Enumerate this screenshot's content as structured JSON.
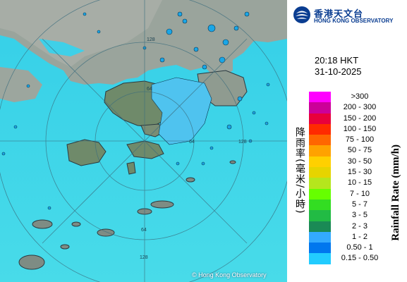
{
  "logo": {
    "zh": "香港天文台",
    "en": "HONG KONG OBSERVATORY",
    "icon": "hko-logo-icon"
  },
  "time": "20:18 HKT",
  "date": "31-10-2025",
  "legend": {
    "title_zh": "降雨率(毫米/小時)",
    "title_en": "Rainfall Rate (mm/h)",
    "items": [
      {
        "label": ">300",
        "color": "#ff00ff"
      },
      {
        "label": "200 - 300",
        "color": "#cc0099"
      },
      {
        "label": "150 - 200",
        "color": "#e8003c"
      },
      {
        "label": "100 - 150",
        "color": "#ff2a00"
      },
      {
        "label": "75 - 100",
        "color": "#ff6600"
      },
      {
        "label": "50 - 75",
        "color": "#ffa200"
      },
      {
        "label": "30 - 50",
        "color": "#ffd000"
      },
      {
        "label": "15 - 30",
        "color": "#e6d400"
      },
      {
        "label": "10 - 15",
        "color": "#b5e61d"
      },
      {
        "label": "7 - 10",
        "color": "#66ff00"
      },
      {
        "label": "5 - 7",
        "color": "#33dd22"
      },
      {
        "label": "3 - 5",
        "color": "#22bb44"
      },
      {
        "label": "2 - 3",
        "color": "#1a8a55"
      },
      {
        "label": "1 - 2",
        "color": "#33aaff"
      },
      {
        "label": "0.50 - 1",
        "color": "#0077ee"
      },
      {
        "label": "0.15 - 0.50",
        "color": "#22ccff"
      }
    ]
  },
  "map": {
    "credit": "© Hong Kong Observatory",
    "sea_color": "#3fd8ec",
    "land_color": "#8a9a8f",
    "range_labels": [
      "64",
      "64",
      "64",
      "128",
      "128",
      "128"
    ]
  }
}
